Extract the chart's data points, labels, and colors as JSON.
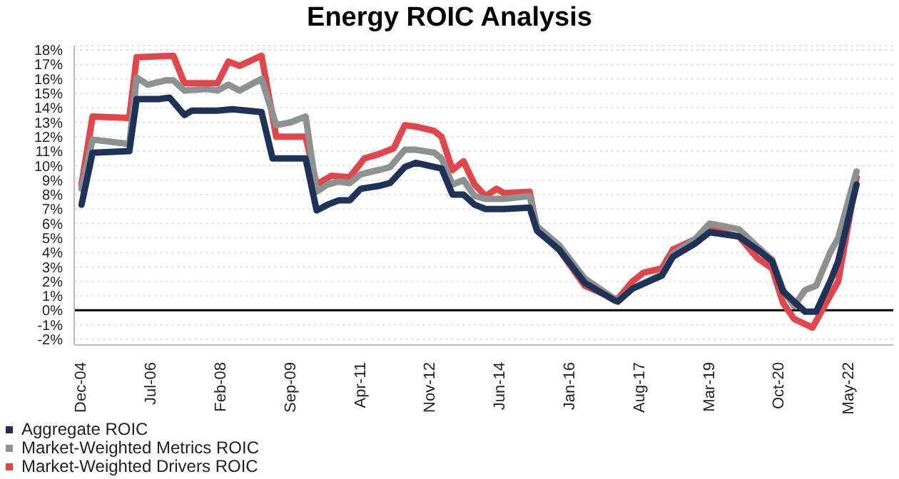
{
  "chart_data": {
    "type": "line",
    "title": "Energy ROIC Analysis",
    "xlim": [
      "2004-10",
      "2023-05"
    ],
    "xticks": [
      {
        "value": "2004-12",
        "label": "Dec-04"
      },
      {
        "value": "2006-07",
        "label": "Jul-06"
      },
      {
        "value": "2008-02",
        "label": "Feb-08"
      },
      {
        "value": "2009-09",
        "label": "Sep-09"
      },
      {
        "value": "2011-04",
        "label": "Apr-11"
      },
      {
        "value": "2012-11",
        "label": "Nov-12"
      },
      {
        "value": "2014-06",
        "label": "Jun-14"
      },
      {
        "value": "2016-01",
        "label": "Jan-16"
      },
      {
        "value": "2017-08",
        "label": "Aug-17"
      },
      {
        "value": "2019-03",
        "label": "Mar-19"
      },
      {
        "value": "2020-10",
        "label": "Oct-20"
      },
      {
        "value": "2022-05",
        "label": "May-22"
      }
    ],
    "ylim": [
      -2.4,
      18.3
    ],
    "yticks": [
      {
        "value": -2,
        "label": "-2%"
      },
      {
        "value": -1,
        "label": "-1%"
      },
      {
        "value": 0,
        "label": "0%"
      },
      {
        "value": 1,
        "label": "1%"
      },
      {
        "value": 2,
        "label": "2%"
      },
      {
        "value": 3,
        "label": "3%"
      },
      {
        "value": 4,
        "label": "4%"
      },
      {
        "value": 5,
        "label": "5%"
      },
      {
        "value": 6,
        "label": "6%"
      },
      {
        "value": 7,
        "label": "7%"
      },
      {
        "value": 8,
        "label": "8%"
      },
      {
        "value": 9,
        "label": "9%"
      },
      {
        "value": 10,
        "label": "10%"
      },
      {
        "value": 11,
        "label": "11%"
      },
      {
        "value": 12,
        "label": "12%"
      },
      {
        "value": 13,
        "label": "13%"
      },
      {
        "value": 14,
        "label": "14%"
      },
      {
        "value": 15,
        "label": "15%"
      },
      {
        "value": 16,
        "label": "16%"
      },
      {
        "value": 17,
        "label": "17%"
      },
      {
        "value": 18,
        "label": "18%"
      }
    ],
    "grid": "y",
    "legend": "bottom left",
    "ref_lines": [
      {
        "axis": "y",
        "value": 0,
        "color": "#000000"
      }
    ],
    "series": [
      {
        "name": "Market-Weighted Drivers ROIC",
        "color": "#e0474c",
        "x": [
          "2004-12",
          "2005-03",
          "2006-01",
          "2006-03",
          "2007-01",
          "2007-04",
          "2008-01",
          "2008-04",
          "2008-07",
          "2009-01",
          "2009-05",
          "2010-01",
          "2010-04",
          "2010-08",
          "2011-01",
          "2011-05",
          "2011-09",
          "2012-01",
          "2012-04",
          "2012-07",
          "2012-12",
          "2013-02",
          "2013-05",
          "2013-08",
          "2013-11",
          "2014-02",
          "2014-05",
          "2014-07",
          "2015-02",
          "2015-04",
          "2015-10",
          "2016-05",
          "2017-01",
          "2017-02",
          "2017-06",
          "2017-09",
          "2018-02",
          "2018-05",
          "2018-11",
          "2019-03",
          "2019-11",
          "2020-04",
          "2020-08",
          "2020-11",
          "2021-02",
          "2021-07",
          "2021-12",
          "2022-02",
          "2022-07"
        ],
        "values": [
          8.7,
          13.4,
          13.3,
          17.5,
          17.6,
          15.7,
          15.7,
          17.2,
          16.9,
          17.6,
          12.0,
          12.0,
          8.7,
          9.3,
          9.2,
          10.5,
          10.8,
          11.2,
          12.8,
          12.7,
          12.4,
          12.0,
          9.7,
          10.3,
          8.7,
          7.9,
          8.4,
          8.1,
          8.2,
          5.6,
          4.2,
          1.7,
          0.8,
          0.8,
          2.0,
          2.6,
          2.9,
          4.2,
          4.9,
          5.6,
          5.1,
          3.6,
          2.9,
          0.5,
          -0.6,
          -1.2,
          1.1,
          2.0,
          9.2
        ]
      },
      {
        "name": "Market-Weighted Metrics ROIC",
        "color": "#8c9191",
        "x": [
          "2004-12",
          "2005-03",
          "2006-01",
          "2006-03",
          "2006-06",
          "2006-11",
          "2007-01",
          "2007-04",
          "2007-10",
          "2008-01",
          "2008-04",
          "2008-07",
          "2009-01",
          "2009-05",
          "2009-09",
          "2010-01",
          "2010-04",
          "2010-07",
          "2010-10",
          "2011-01",
          "2011-04",
          "2011-09",
          "2011-12",
          "2012-04",
          "2012-07",
          "2012-12",
          "2013-02",
          "2013-05",
          "2013-08",
          "2013-11",
          "2014-02",
          "2014-07",
          "2015-02",
          "2015-04",
          "2015-10",
          "2016-05",
          "2017-01",
          "2017-02",
          "2017-06",
          "2018-02",
          "2018-05",
          "2018-11",
          "2019-03",
          "2019-11",
          "2020-04",
          "2020-08",
          "2020-11",
          "2021-02",
          "2021-05",
          "2021-08",
          "2021-12",
          "2022-02",
          "2022-07"
        ],
        "values": [
          8.4,
          11.8,
          11.5,
          16.1,
          15.6,
          15.9,
          15.9,
          15.2,
          15.3,
          15.2,
          15.6,
          15.2,
          16.0,
          12.8,
          13.0,
          13.4,
          8.2,
          8.7,
          8.9,
          8.8,
          9.4,
          9.7,
          9.9,
          11.1,
          11.1,
          10.9,
          10.5,
          8.7,
          9.0,
          7.9,
          7.7,
          7.7,
          7.9,
          5.8,
          4.5,
          2.2,
          0.8,
          0.7,
          1.5,
          2.5,
          3.9,
          4.9,
          6.0,
          5.6,
          4.4,
          3.5,
          1.4,
          0.3,
          1.4,
          1.7,
          4.1,
          5.0,
          9.6
        ]
      },
      {
        "name": "Aggregate ROIC",
        "color": "#1f3358",
        "x": [
          "2004-12",
          "2005-03",
          "2006-01",
          "2006-03",
          "2006-09",
          "2006-12",
          "2007-04",
          "2007-06",
          "2008-01",
          "2008-05",
          "2009-01",
          "2009-04",
          "2010-01",
          "2010-04",
          "2010-07",
          "2010-10",
          "2011-01",
          "2011-04",
          "2011-09",
          "2011-12",
          "2012-04",
          "2012-07",
          "2013-02",
          "2013-05",
          "2013-08",
          "2013-11",
          "2014-02",
          "2014-07",
          "2015-02",
          "2015-04",
          "2015-10",
          "2016-05",
          "2017-01",
          "2017-02",
          "2017-06",
          "2018-02",
          "2018-05",
          "2018-11",
          "2019-03",
          "2019-11",
          "2020-04",
          "2020-08",
          "2020-11",
          "2021-05",
          "2021-08",
          "2021-12",
          "2022-02",
          "2022-07"
        ],
        "values": [
          7.3,
          10.9,
          11.0,
          14.6,
          14.6,
          14.7,
          13.5,
          13.8,
          13.8,
          13.9,
          13.7,
          10.5,
          10.5,
          6.9,
          7.3,
          7.6,
          7.6,
          8.4,
          8.6,
          8.8,
          9.9,
          10.2,
          9.8,
          8.0,
          8.0,
          7.3,
          7.0,
          7.0,
          7.1,
          5.5,
          4.2,
          1.9,
          0.7,
          0.6,
          1.5,
          2.4,
          3.7,
          4.6,
          5.4,
          5.1,
          4.2,
          3.4,
          1.3,
          -0.1,
          -0.1,
          2.1,
          3.4,
          8.7
        ]
      }
    ]
  }
}
